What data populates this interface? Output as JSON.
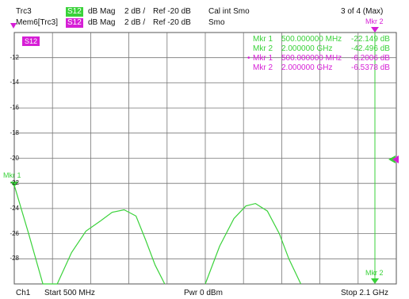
{
  "header": {
    "trace1": {
      "name": "Trc3",
      "param": "S12",
      "format": "dB Mag",
      "scale": "2 dB /",
      "ref": "Ref -20 dB",
      "extra": "Cal int Smo",
      "param_color": "#3ad23a"
    },
    "trace2": {
      "name": "Mem6[Trc3]",
      "param": "S12",
      "format": "dB Mag",
      "scale": "2 dB /",
      "ref": "Ref -20 dB",
      "extra": "Smo",
      "param_color": "#d61fd6"
    },
    "count": "3 of 4 (Max)"
  },
  "plot": {
    "label_box": "S12",
    "y_ticks": [
      "-12",
      "-14",
      "-16",
      "-18",
      "-20",
      "-22",
      "-24",
      "-26",
      "-28"
    ],
    "marker_left_label": "Mkr 1",
    "marker_top_label": "Mkr 2",
    "marker_bottom_label": "Mkr 2",
    "ref_marker_value": "-20"
  },
  "markers": [
    {
      "name": "Mkr 1",
      "freq": "500.000000 MHz",
      "value": "-22.149 dB",
      "color": "#3ad23a",
      "active": false
    },
    {
      "name": "Mkr 2",
      "freq": "2.000000 GHz",
      "value": "-42.496 dB",
      "color": "#3ad23a",
      "active": false
    },
    {
      "name": "Mkr 1",
      "freq": "500.000000 MHz",
      "value": "-6.2006 dB",
      "color": "#d61fd6",
      "active": true
    },
    {
      "name": "Mkr 2",
      "freq": "2.000000 GHz",
      "value": "-6.5378 dB",
      "color": "#d61fd6",
      "active": false
    }
  ],
  "chart_data": {
    "type": "line",
    "ylim": [
      -30,
      -10
    ],
    "x_range_mhz": [
      500,
      2100
    ],
    "series": [
      {
        "x": [
          500,
          560,
          620,
          680,
          740,
          800,
          860,
          910,
          960,
          1010,
          1050,
          1090,
          1130
        ],
        "y": [
          -22.15,
          -26.0,
          -30.0,
          -30.0,
          -27.5,
          -25.8,
          -25.0,
          -24.3,
          -24.1,
          -24.6,
          -26.5,
          -28.5,
          -30.0
        ],
        "color": "#3ad23a"
      },
      {
        "x": [
          1300,
          1360,
          1420,
          1470,
          1510,
          1560,
          1610,
          1650,
          1700
        ],
        "y": [
          -30.0,
          -27.0,
          -24.8,
          -23.8,
          -23.6,
          -24.2,
          -26.0,
          -28.0,
          -30.0
        ],
        "color": "#3ad23a"
      }
    ]
  },
  "footer": {
    "channel": "Ch1",
    "start": "Start  500 MHz",
    "power": "Pwr  0 dBm",
    "stop": "Stop  2.1 GHz"
  }
}
